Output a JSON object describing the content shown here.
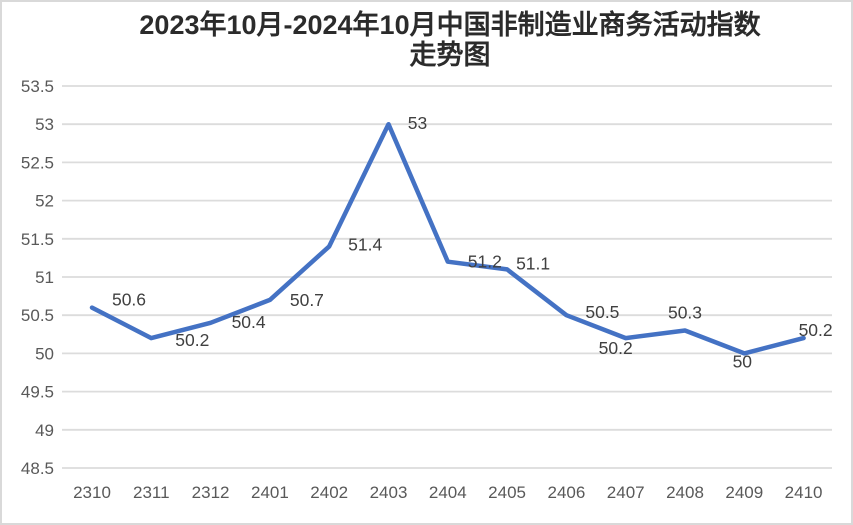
{
  "chart_data": {
    "type": "line",
    "title": "2023年10月-2024年10月中国非制造业商务活动指数走势图",
    "title_lines": [
      "2023年10月-2024年10月中国非制造业商务活动指数",
      "走势图"
    ],
    "categories": [
      "2310",
      "2311",
      "2312",
      "2401",
      "2402",
      "2403",
      "2404",
      "2405",
      "2406",
      "2407",
      "2408",
      "2409",
      "2410"
    ],
    "values": [
      50.6,
      50.2,
      50.4,
      50.7,
      51.4,
      53,
      51.2,
      51.1,
      50.5,
      50.2,
      50.3,
      50,
      50.2
    ],
    "point_labels": [
      "50.6",
      "50.2",
      "50.4",
      "50.7",
      "51.4",
      "53",
      "51.2",
      "51.1",
      "50.5",
      "50.2",
      "50.3",
      "50",
      "50.2"
    ],
    "xlabel": "",
    "ylabel": "",
    "ylim": [
      48.5,
      53.5
    ],
    "y_tick_step": 0.5,
    "y_tick_labels": [
      "53.5",
      "53",
      "52.5",
      "52",
      "51.5",
      "51",
      "50.5",
      "50",
      "49.5",
      "49",
      "48.5"
    ],
    "grid": "horizontal",
    "legend": "none"
  },
  "colors": {
    "line": "#4472C4",
    "gridline": "#dcdcdc",
    "axis_text": "#595959",
    "data_label": "#404040",
    "title": "#2b2b2b",
    "border": "#d9d9d9"
  }
}
